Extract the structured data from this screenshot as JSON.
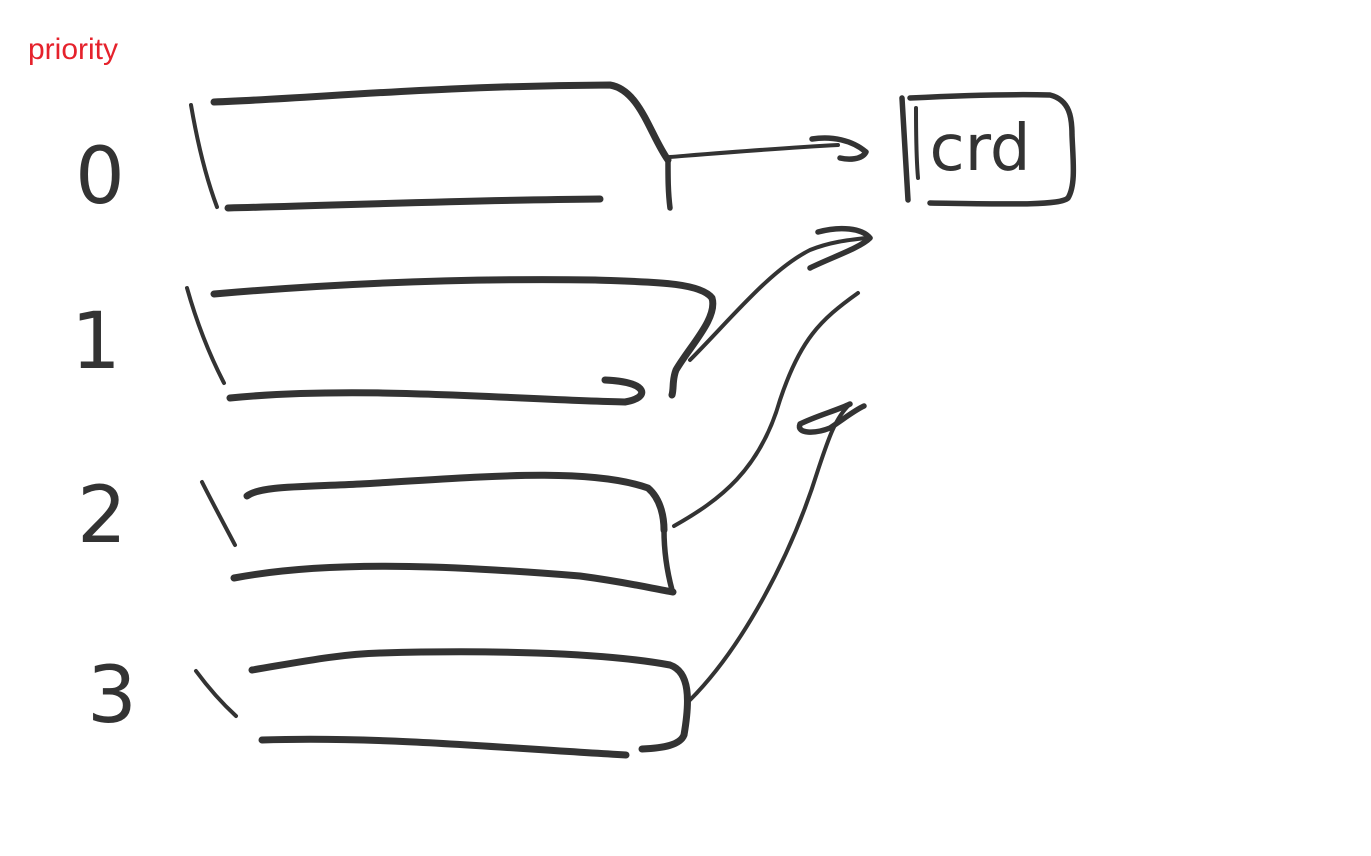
{
  "heading": "priority",
  "ink_color": "#333333",
  "heading_color": "#e5222c",
  "priority_levels": [
    {
      "label": "0"
    },
    {
      "label": "1"
    },
    {
      "label": "2"
    },
    {
      "label": "3"
    }
  ],
  "target_box": {
    "label": "crd"
  }
}
